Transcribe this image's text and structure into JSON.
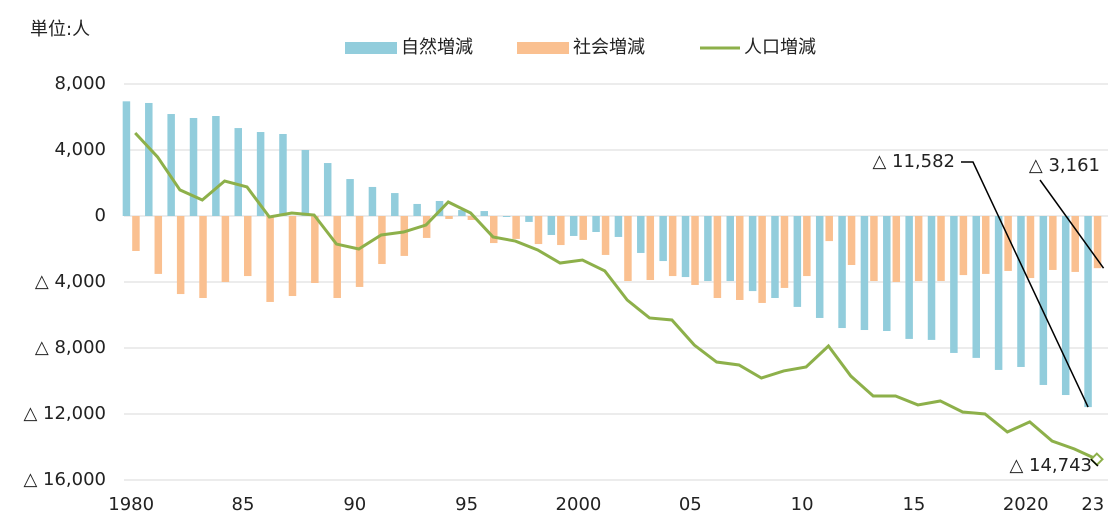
{
  "chart_data": {
    "type": "bar_line",
    "unit_label": "単位:人",
    "categories": [
      "1980",
      null,
      null,
      null,
      null,
      "85",
      null,
      null,
      null,
      null,
      "90",
      null,
      null,
      null,
      null,
      "95",
      null,
      null,
      null,
      null,
      "2000",
      null,
      null,
      null,
      null,
      "05",
      null,
      null,
      null,
      null,
      "10",
      null,
      null,
      null,
      null,
      "15",
      null,
      null,
      null,
      null,
      "2020",
      null,
      null,
      "23"
    ],
    "series": [
      {
        "name": "自然増減",
        "kind": "bar",
        "color": "#92cddc",
        "values": [
          6950,
          6850,
          6180,
          5940,
          6060,
          5330,
          5090,
          4970,
          4000,
          3210,
          2240,
          1760,
          1390,
          730,
          910,
          360,
          300,
          -60,
          -360,
          -1150,
          -1210,
          -970,
          -1270,
          -2240,
          -2730,
          -3700,
          -3940,
          -3940,
          -4550,
          -4970,
          -5510,
          -6180,
          -6790,
          -6910,
          -6970,
          -7450,
          -7510,
          -8300,
          -8600,
          -9330,
          -9150,
          -10240,
          -10850,
          -11582
        ],
        "value_labels": [
          null,
          null,
          null,
          null,
          null,
          null,
          null,
          null,
          null,
          null,
          null,
          null,
          null,
          null,
          null,
          null,
          null,
          null,
          null,
          null,
          null,
          null,
          null,
          null,
          null,
          null,
          null,
          null,
          null,
          null,
          null,
          null,
          null,
          null,
          null,
          null,
          null,
          null,
          null,
          null,
          null,
          null,
          null,
          "△ 11,582"
        ]
      },
      {
        "name": "社会増減",
        "kind": "bar",
        "color": "#fac090",
        "values": [
          -2120,
          -3510,
          -4730,
          -4970,
          -4000,
          -3640,
          -5210,
          -4850,
          -4060,
          -4970,
          -4300,
          -2910,
          -2420,
          -1330,
          -180,
          -240,
          -1640,
          -1390,
          -1700,
          -1760,
          -1450,
          -2360,
          -3940,
          -3880,
          -3640,
          -4180,
          -4970,
          -5090,
          -5270,
          -4360,
          -3640,
          -1520,
          -2970,
          -3940,
          -4000,
          -3940,
          -3940,
          -3580,
          -3510,
          -3330,
          -3760,
          -3270,
          -3390,
          -3161
        ],
        "value_labels": [
          null,
          null,
          null,
          null,
          null,
          null,
          null,
          null,
          null,
          null,
          null,
          null,
          null,
          null,
          null,
          null,
          null,
          null,
          null,
          null,
          null,
          null,
          null,
          null,
          null,
          null,
          null,
          null,
          null,
          null,
          null,
          null,
          null,
          null,
          null,
          null,
          null,
          null,
          null,
          null,
          null,
          null,
          null,
          "△ 3,161"
        ]
      },
      {
        "name": "人口増減",
        "kind": "line",
        "color": "#8db04a",
        "values": [
          5030,
          3580,
          1580,
          970,
          2120,
          1760,
          -60,
          180,
          60,
          -1700,
          -2000,
          -1150,
          -970,
          -550,
          850,
          180,
          -1270,
          -1520,
          -2060,
          -2850,
          -2670,
          -3330,
          -5090,
          -6180,
          -6300,
          -7820,
          -8850,
          -9030,
          -9820,
          -9390,
          -9150,
          -7880,
          -9700,
          -10910,
          -10910,
          -11450,
          -11210,
          -11880,
          -12000,
          -13090,
          -12480,
          -13640,
          -14120,
          -14743
        ],
        "value_labels": [
          null,
          null,
          null,
          null,
          null,
          null,
          null,
          null,
          null,
          null,
          null,
          null,
          null,
          null,
          null,
          null,
          null,
          null,
          null,
          null,
          null,
          null,
          null,
          null,
          null,
          null,
          null,
          null,
          null,
          null,
          null,
          null,
          null,
          null,
          null,
          null,
          null,
          null,
          null,
          null,
          null,
          null,
          null,
          "△ 14,743"
        ]
      }
    ],
    "ylim": [
      -16000,
      8000
    ],
    "yticks": [
      {
        "value": -16000,
        "label": "△ 16,000"
      },
      {
        "value": -12000,
        "label": "△ 12,000"
      },
      {
        "value": -8000,
        "label": "△ 8,000"
      },
      {
        "value": -4000,
        "label": "△ 4,000"
      },
      0,
      {
        "value": 4000,
        "label": "4,000"
      },
      {
        "value": 8000,
        "label": "8,000"
      }
    ],
    "grid": true
  }
}
